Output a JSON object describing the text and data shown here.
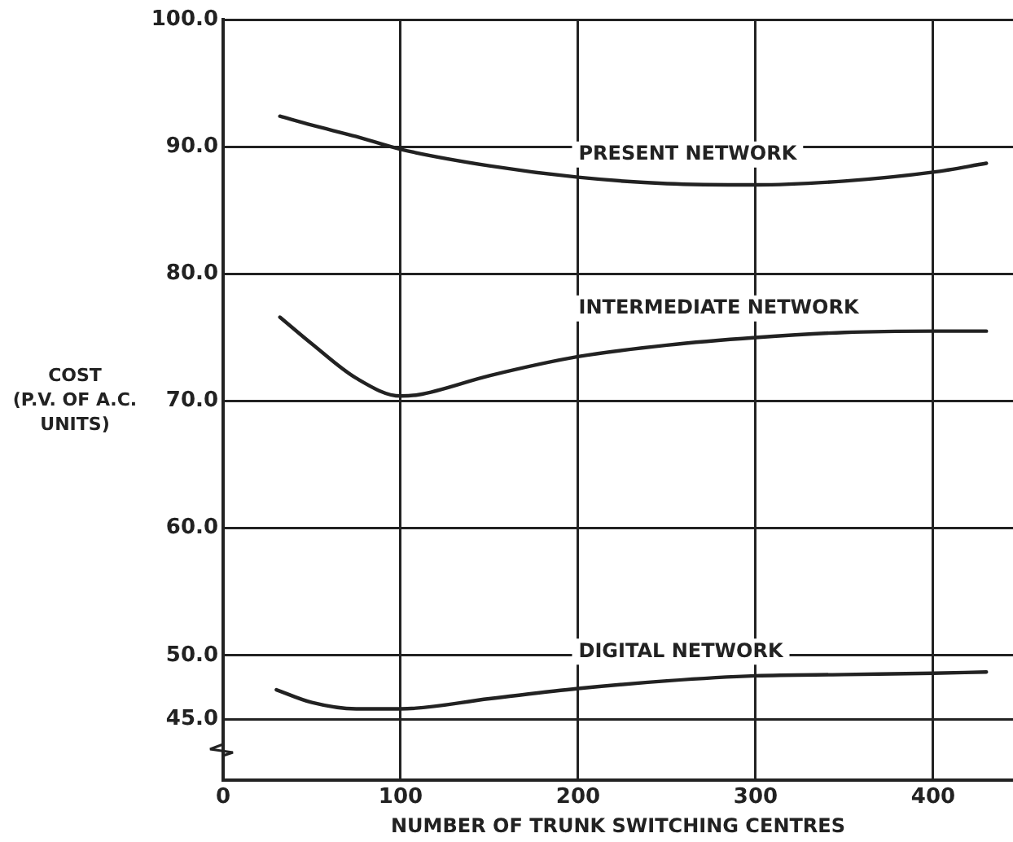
{
  "chart_data": {
    "type": "line",
    "xlabel": "NUMBER OF TRUNK SWITCHING CENTRES",
    "ylabel": "COST\n(P.V. OF A.C.\nUNITS)",
    "xlim": [
      0,
      445
    ],
    "xticks": [
      0,
      100,
      200,
      300,
      400
    ],
    "ylim": [
      40.2,
      100
    ],
    "yticks": [
      {
        "value": 45,
        "label": "45.0"
      },
      {
        "value": 50,
        "label": "50.0"
      },
      {
        "value": 60,
        "label": "60.0"
      },
      {
        "value": 70,
        "label": "70.0"
      },
      {
        "value": 80,
        "label": "80.0"
      },
      {
        "value": 90,
        "label": "90.0"
      },
      {
        "value": 100,
        "label": "100.0"
      }
    ],
    "grid": true,
    "legend": false,
    "marker": "none",
    "line_style": "solid",
    "series": [
      {
        "name": "PRESENT NETWORK",
        "color": "#222222",
        "x": [
          32,
          50,
          75,
          100,
          150,
          200,
          250,
          300,
          350,
          400,
          430
        ],
        "values": [
          92.4,
          91.7,
          90.8,
          89.8,
          88.5,
          87.6,
          87.1,
          87.0,
          87.3,
          88.0,
          88.7
        ]
      },
      {
        "name": "INTERMEDIATE NETWORK",
        "color": "#222222",
        "x": [
          32,
          50,
          75,
          100,
          110,
          150,
          200,
          250,
          300,
          350,
          400,
          430
        ],
        "values": [
          76.6,
          74.5,
          71.8,
          70.4,
          70.5,
          72.0,
          73.5,
          74.4,
          75.0,
          75.4,
          75.5,
          75.5
        ]
      },
      {
        "name": "DIGITAL NETWORK",
        "color": "#222222",
        "x": [
          30,
          50,
          75,
          100,
          150,
          200,
          250,
          300,
          350,
          400,
          430
        ],
        "values": [
          47.3,
          46.3,
          45.8,
          45.8,
          46.6,
          47.4,
          48.0,
          48.4,
          48.5,
          48.6,
          48.7
        ]
      }
    ]
  }
}
